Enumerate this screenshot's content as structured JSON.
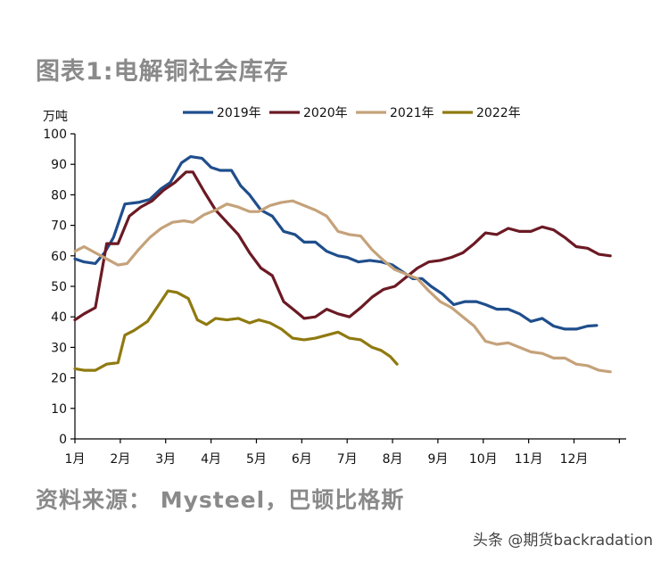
{
  "figure": {
    "title": "图表1:电解铜社会库存",
    "source": "资料来源： Mysteel，巴顿比格斯",
    "watermark": "头条 @期货backradation"
  },
  "chart_data": {
    "type": "line",
    "title": "图表1:电解铜社会库存",
    "unit_label": "万吨",
    "ylim": [
      0,
      100
    ],
    "y_ticks": [
      0,
      10,
      20,
      30,
      40,
      50,
      60,
      70,
      80,
      90,
      100
    ],
    "xlim": [
      1,
      13.15
    ],
    "x_tick_labels": [
      "1月",
      "2月",
      "3月",
      "4月",
      "5月",
      "6月",
      "7月",
      "8月",
      "9月",
      "10月",
      "11月",
      "12月"
    ],
    "x_tick_positions": [
      1,
      2,
      3,
      4,
      5,
      6,
      7,
      8,
      9,
      10,
      11,
      12
    ],
    "grid": false,
    "legend_position": "top",
    "series": [
      {
        "name": "2019年",
        "color": "#1f4e8c",
        "x": [
          1.0,
          1.2,
          1.45,
          1.65,
          1.85,
          2.1,
          2.4,
          2.65,
          2.9,
          3.1,
          3.35,
          3.55,
          3.8,
          4.0,
          4.2,
          4.45,
          4.65,
          4.85,
          5.1,
          5.35,
          5.6,
          5.85,
          6.05,
          6.3,
          6.55,
          6.8,
          7.0,
          7.25,
          7.5,
          7.75,
          8.0,
          8.2,
          8.45,
          8.65,
          8.85,
          9.1,
          9.35,
          9.6,
          9.85,
          10.05,
          10.3,
          10.55,
          10.8,
          11.05,
          11.3,
          11.55,
          11.8,
          12.05,
          12.3,
          12.5
        ],
        "values": [
          59,
          58,
          57.5,
          61,
          66,
          77,
          77.5,
          78.5,
          82,
          84,
          90.5,
          92.5,
          92,
          89,
          88,
          88,
          83,
          80,
          75,
          73,
          68,
          67,
          64.5,
          64.5,
          61.5,
          60,
          59.5,
          58,
          58.5,
          58,
          57,
          55,
          52.5,
          52.5,
          50,
          47.5,
          44,
          45,
          45,
          44,
          42.5,
          42.5,
          41,
          38.5,
          39.5,
          37,
          36,
          36,
          37,
          37.2
        ]
      },
      {
        "name": "2020年",
        "color": "#6b1a24",
        "x": [
          1.0,
          1.2,
          1.45,
          1.7,
          1.95,
          2.2,
          2.45,
          2.7,
          2.95,
          3.2,
          3.45,
          3.6,
          3.85,
          4.1,
          4.35,
          4.6,
          4.85,
          5.1,
          5.35,
          5.6,
          5.85,
          6.05,
          6.3,
          6.55,
          6.8,
          7.05,
          7.3,
          7.55,
          7.8,
          8.05,
          8.3,
          8.55,
          8.8,
          9.05,
          9.3,
          9.55,
          9.8,
          10.05,
          10.3,
          10.55,
          10.8,
          11.05,
          11.3,
          11.55,
          11.8,
          12.05,
          12.3,
          12.55,
          12.8
        ],
        "values": [
          39,
          41,
          43,
          64,
          64,
          73,
          76,
          78,
          81.5,
          84,
          87.5,
          87.5,
          81,
          75,
          71,
          67,
          61,
          56,
          53.5,
          45,
          42,
          39.5,
          40,
          42.5,
          41,
          40,
          43,
          46.5,
          49,
          50,
          53,
          56,
          58,
          58.5,
          59.5,
          61,
          64,
          67.5,
          67,
          69,
          68,
          68,
          69.5,
          68.5,
          66,
          63,
          62.5,
          60.5,
          60
        ]
      },
      {
        "name": "2021年",
        "color": "#c5a27a",
        "x": [
          1.0,
          1.2,
          1.45,
          1.7,
          1.95,
          2.15,
          2.4,
          2.65,
          2.9,
          3.15,
          3.4,
          3.6,
          3.85,
          4.1,
          4.35,
          4.6,
          4.85,
          5.05,
          5.3,
          5.55,
          5.8,
          6.05,
          6.3,
          6.55,
          6.8,
          7.05,
          7.3,
          7.55,
          7.8,
          8.05,
          8.3,
          8.55,
          8.8,
          9.05,
          9.3,
          9.55,
          9.8,
          10.05,
          10.3,
          10.55,
          10.8,
          11.05,
          11.3,
          11.55,
          11.8,
          12.05,
          12.3,
          12.55,
          12.8
        ],
        "values": [
          61.5,
          63,
          61,
          59,
          57,
          57.5,
          62,
          66,
          69,
          71,
          71.5,
          71,
          73.5,
          75,
          77,
          76,
          74.5,
          74.5,
          76.5,
          77.5,
          78,
          76.5,
          75,
          73,
          68,
          67,
          66.5,
          62,
          58.5,
          55.5,
          54,
          52.5,
          48.5,
          45,
          43,
          40,
          37,
          32,
          31,
          31.5,
          30,
          28.5,
          28,
          26.5,
          26.5,
          24.5,
          24,
          22.5,
          22
        ]
      },
      {
        "name": "2022年",
        "color": "#8f7a10",
        "x": [
          1.0,
          1.2,
          1.45,
          1.7,
          1.95,
          2.1,
          2.3,
          2.6,
          2.85,
          3.05,
          3.25,
          3.5,
          3.7,
          3.9,
          4.1,
          4.35,
          4.6,
          4.85,
          5.05,
          5.3,
          5.55,
          5.8,
          6.05,
          6.3,
          6.55,
          6.8,
          7.05,
          7.3,
          7.55,
          7.75,
          7.95,
          8.1
        ],
        "values": [
          23,
          22.5,
          22.5,
          24.5,
          25,
          34,
          35.5,
          38.5,
          44,
          48.5,
          48,
          46,
          39,
          37.5,
          39.5,
          39,
          39.5,
          38,
          39,
          38,
          36,
          33,
          32.5,
          33,
          34,
          35,
          33,
          32.5,
          30,
          29,
          27,
          24.5
        ]
      }
    ]
  }
}
